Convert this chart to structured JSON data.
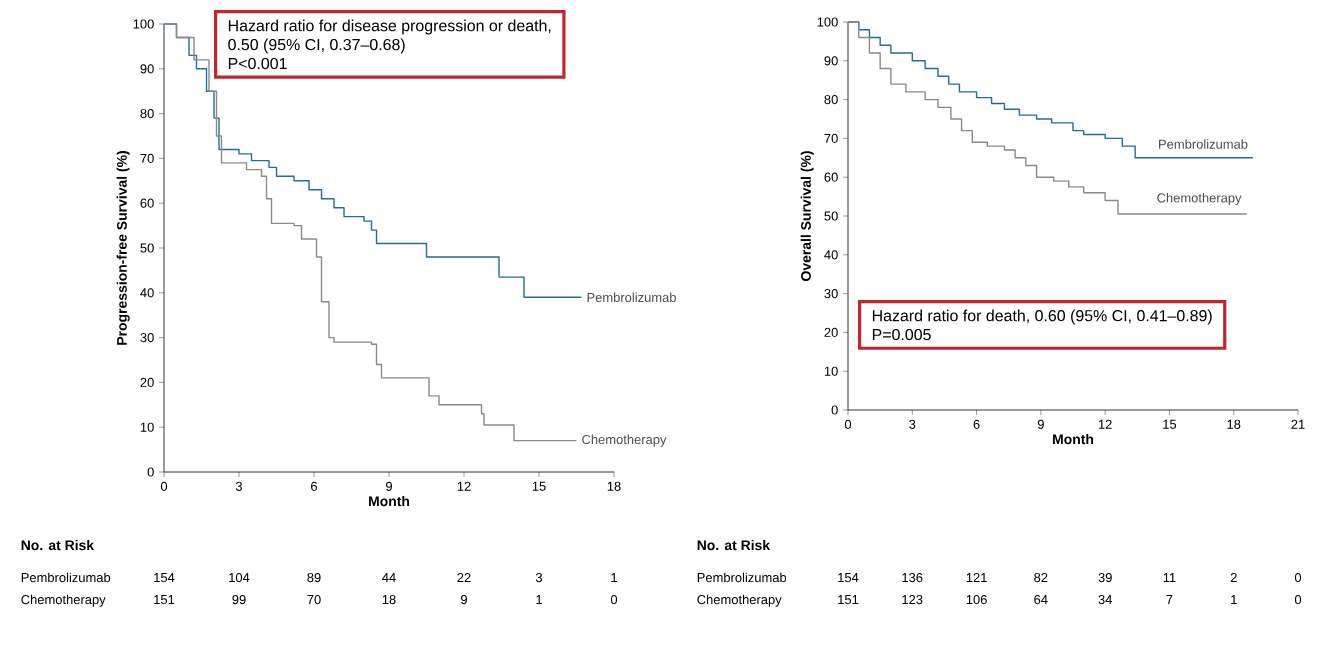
{
  "chart_data": [
    {
      "type": "step",
      "xlabel": "Month",
      "ylabel": "Progression-free Survival (%)",
      "xlim": [
        0,
        18
      ],
      "ylim": [
        0,
        100
      ],
      "xticks": [
        0,
        3,
        6,
        9,
        12,
        15,
        18
      ],
      "yticks": [
        0,
        10,
        20,
        30,
        40,
        50,
        60,
        70,
        80,
        90,
        100
      ],
      "marker": "none",
      "line_style": "solid",
      "series": [
        {
          "name": "Pembrolizumab",
          "color": "#1f6e9c",
          "x": [
            0,
            0.5,
            1,
            1.3,
            1.7,
            2.0,
            2.2,
            3,
            3.5,
            4.2,
            4.5,
            5.2,
            5.8,
            6.3,
            6.8,
            7.2,
            8,
            8.3,
            8.5,
            10.3,
            10.5,
            13.4,
            14.4,
            16.7
          ],
          "values": [
            100,
            97,
            93,
            90,
            85,
            79,
            72,
            71,
            69.5,
            68,
            66,
            65,
            63,
            61,
            59,
            57,
            56,
            54,
            51,
            51,
            48,
            43.5,
            39,
            39
          ]
        },
        {
          "name": "Chemotherapy",
          "color": "#8a8a8a",
          "x": [
            0,
            0.5,
            1.2,
            1.8,
            2.1,
            2.3,
            3.3,
            3.9,
            4.1,
            4.3,
            5.2,
            5.5,
            6.1,
            6.3,
            6.6,
            6.8,
            8.3,
            8.5,
            8.7,
            10.5,
            10.6,
            11,
            12.7,
            12.8,
            14,
            16.5
          ],
          "values": [
            100,
            97,
            92,
            85,
            75,
            69,
            67.5,
            66,
            61,
            55.5,
            55,
            52,
            48,
            38,
            30,
            29,
            28.5,
            24,
            21,
            21,
            17,
            15,
            13,
            10.5,
            7,
            7
          ]
        }
      ],
      "annotations": [
        "Hazard ratio for disease progression or death,",
        "0.50 (95% CI, 0.37–0.68)",
        "P<0.001",
        "No. at Risk",
        "Pembrolizumab",
        "154",
        "104",
        "89",
        "44",
        "22",
        "3",
        "1",
        "Chemotherapy",
        "151",
        "99",
        "70",
        "18",
        "9",
        "1",
        "0"
      ]
    },
    {
      "type": "step",
      "xlabel": "Month",
      "ylabel": "Overall Survival (%)",
      "xlim": [
        0,
        21
      ],
      "ylim": [
        0,
        100
      ],
      "xticks": [
        0,
        3,
        6,
        9,
        12,
        15,
        18,
        21
      ],
      "yticks": [
        0,
        10,
        20,
        30,
        40,
        50,
        60,
        70,
        80,
        90,
        100
      ],
      "marker": "none",
      "line_style": "solid",
      "series": [
        {
          "name": "Pembrolizumab",
          "color": "#1f6e9c",
          "x": [
            0,
            0.5,
            1,
            1.5,
            2,
            3,
            3.6,
            4.2,
            4.7,
            5.2,
            6,
            6.7,
            7.3,
            8,
            8.8,
            9.5,
            10.5,
            11,
            12,
            12.8,
            13.4,
            18.9
          ],
          "values": [
            100,
            98,
            96,
            94,
            92,
            90,
            88,
            86,
            84,
            82,
            80.5,
            79,
            77.5,
            76,
            75,
            74,
            72,
            71,
            70,
            68,
            65,
            65
          ]
        },
        {
          "name": "Chemotherapy",
          "color": "#8a8a8a",
          "x": [
            0,
            0.5,
            1,
            1.5,
            2,
            2.7,
            3.6,
            4.2,
            4.8,
            5.3,
            5.8,
            6.5,
            7.3,
            7.8,
            8.3,
            8.8,
            9.6,
            10.3,
            11,
            12,
            12.6,
            18.6
          ],
          "values": [
            100,
            96,
            92,
            88,
            84,
            82,
            80,
            78,
            75,
            72,
            69,
            68,
            67,
            65,
            63,
            60,
            59,
            57.5,
            56,
            54,
            50.5,
            50.5
          ]
        }
      ],
      "annotations": [
        "Hazard ratio for death, 0.60 (95% CI, 0.41–0.89)",
        "P=0.005",
        "No. at Risk",
        "Pembrolizumab",
        "154",
        "136",
        "121",
        "82",
        "39",
        "11",
        "2",
        "0",
        "Chemotherapy",
        "151",
        "123",
        "106",
        "64",
        "34",
        "7",
        "1",
        "0"
      ]
    }
  ]
}
